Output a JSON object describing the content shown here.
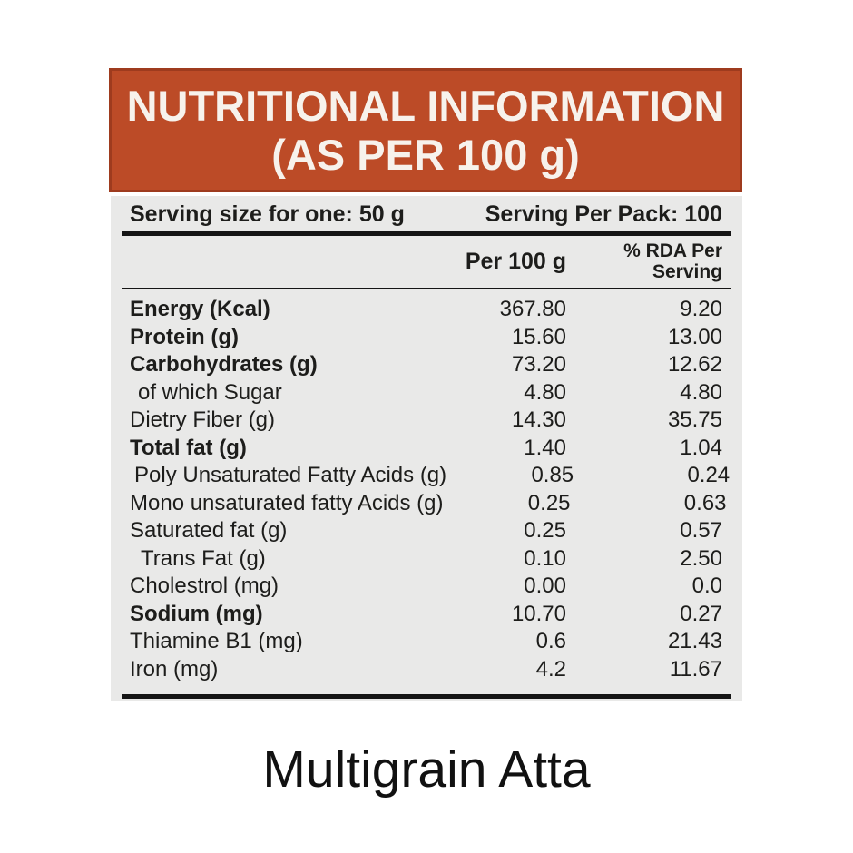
{
  "header": {
    "title_line1": "NUTRITIONAL INFORMATION",
    "title_line2": "(AS PER 100 g)"
  },
  "table": {
    "serving_size": "Serving size for one: 50 g",
    "serving_per_pack": "Serving Per Pack: 100",
    "columns": {
      "per100": "Per 100 g",
      "rda": "% RDA Per\nServing"
    },
    "rows": [
      {
        "label": "Energy (Kcal)",
        "per100": "367.80",
        "rda": "9.20"
      },
      {
        "label": "Protein (g)",
        "per100": "15.60",
        "rda": "13.00"
      },
      {
        "label": "Carbohydrates (g)",
        "per100": "73.20",
        "rda": "12.62"
      },
      {
        "label": "of which Sugar",
        "per100": "4.80",
        "rda": "4.80"
      },
      {
        "label": "Dietry Fiber (g)",
        "per100": "14.30",
        "rda": "35.75"
      },
      {
        "label": "Total fat (g)",
        "per100": "1.40",
        "rda": "1.04"
      },
      {
        "label": "Poly Unsaturated Fatty Acids (g)",
        "per100": "0.85",
        "rda": "0.24"
      },
      {
        "label": "Mono unsaturated fatty Acids (g)",
        "per100": "0.25",
        "rda": "0.63"
      },
      {
        "label": "Saturated fat (g)",
        "per100": "0.25",
        "rda": "0.57"
      },
      {
        "label": "Trans Fat (g)",
        "per100": "0.10",
        "rda": "2.50"
      },
      {
        "label": "Cholestrol (mg)",
        "per100": "0.00",
        "rda": "0.0"
      },
      {
        "label": "Sodium (mg)",
        "per100": "10.70",
        "rda": "0.27"
      },
      {
        "label": "Thiamine B1 (mg)",
        "per100": "0.6",
        "rda": "21.43"
      },
      {
        "label": "Iron (mg)",
        "per100": "4.2",
        "rda": "11.67"
      }
    ]
  },
  "footer": {
    "product_name": "Multigrain Atta"
  },
  "colors": {
    "banner_bg": "#BC4B27",
    "banner_border": "#9E3B1E",
    "banner_text": "#F7F2EC",
    "table_bg": "#E9E9E8",
    "text": "#1D1D1B",
    "rule": "#151515"
  }
}
